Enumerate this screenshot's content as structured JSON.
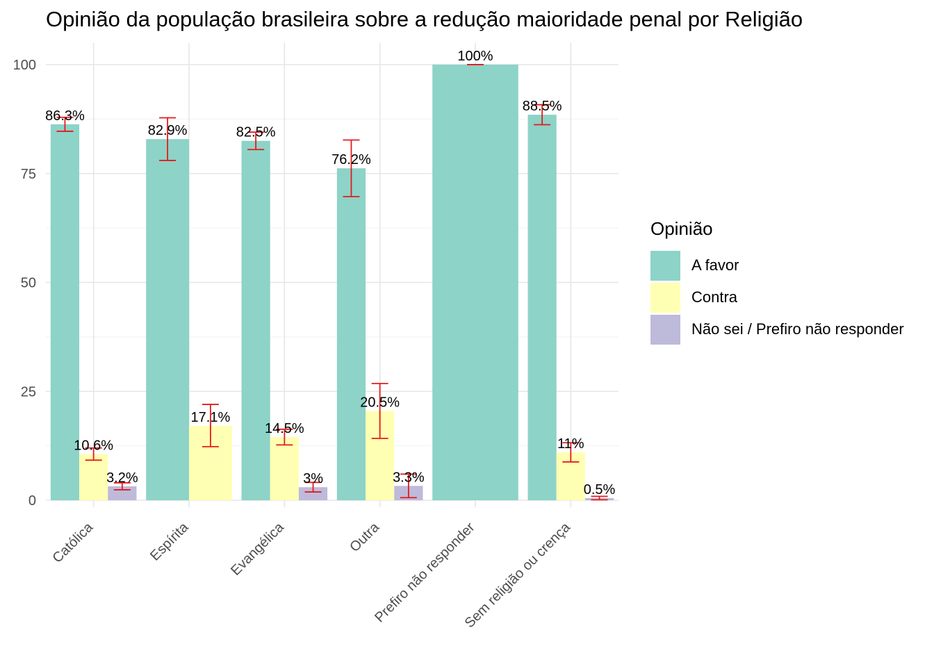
{
  "chart_data": {
    "type": "bar",
    "title": "Opinião da população brasileira sobre a redução maioridade penal por Religião",
    "xlabel": "",
    "ylabel": "",
    "ylim": [
      0,
      100
    ],
    "yticks": [
      0,
      25,
      50,
      75,
      100
    ],
    "categories": [
      "Católica",
      "Espírita",
      "Evangélica",
      "Outra",
      "Prefiro não responder",
      "Sem religião ou crença"
    ],
    "grid": true,
    "legend": {
      "title": "Opinião",
      "placement": "right"
    },
    "error_bar_color": "#e41a1c",
    "series": [
      {
        "name": "A favor",
        "color": "#8dd3c7",
        "values": [
          86.3,
          82.9,
          82.5,
          76.2,
          100,
          88.5
        ],
        "labels": [
          "86.3%",
          "82.9%",
          "82.5%",
          "76.2%",
          "100%",
          "88.5%"
        ],
        "error_low": [
          84.7,
          78.0,
          80.5,
          69.7,
          100,
          86.2
        ],
        "error_high": [
          87.9,
          87.8,
          84.5,
          82.7,
          100,
          90.8
        ]
      },
      {
        "name": "Contra",
        "color": "#ffffb3",
        "values": [
          10.6,
          17.1,
          14.5,
          20.5,
          null,
          11.0
        ],
        "labels": [
          "10.6%",
          "17.1%",
          "14.5%",
          "20.5%",
          "",
          "11%"
        ],
        "error_low": [
          9.2,
          12.3,
          12.7,
          14.2,
          null,
          8.8
        ],
        "error_high": [
          12.0,
          22.0,
          16.3,
          26.8,
          null,
          13.2
        ]
      },
      {
        "name": "Não sei / Prefiro não responder",
        "color": "#bebada",
        "values": [
          3.2,
          null,
          3.0,
          3.3,
          null,
          0.5
        ],
        "labels": [
          "3.2%",
          "",
          "3%",
          "3.3%",
          "",
          "0.5%"
        ],
        "error_low": [
          2.4,
          null,
          1.9,
          0.6,
          null,
          0.1
        ],
        "error_high": [
          4.0,
          null,
          4.1,
          6.0,
          null,
          0.9
        ]
      }
    ]
  }
}
